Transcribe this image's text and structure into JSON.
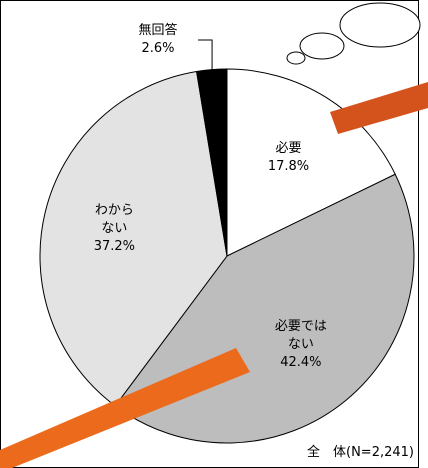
{
  "chart_data": {
    "type": "pie",
    "categories": [
      "必要",
      "必要ではない",
      "わからない",
      "無回答"
    ],
    "values": [
      17.8,
      42.4,
      37.2,
      2.6
    ],
    "value_labels": [
      "17.8%",
      "42.4%",
      "37.2%",
      "2.6%"
    ],
    "colors": [
      "#ffffff",
      "#bdbdbd",
      "#e3e3e3",
      "#000000"
    ],
    "note": "全　体(N=2,241)"
  }
}
